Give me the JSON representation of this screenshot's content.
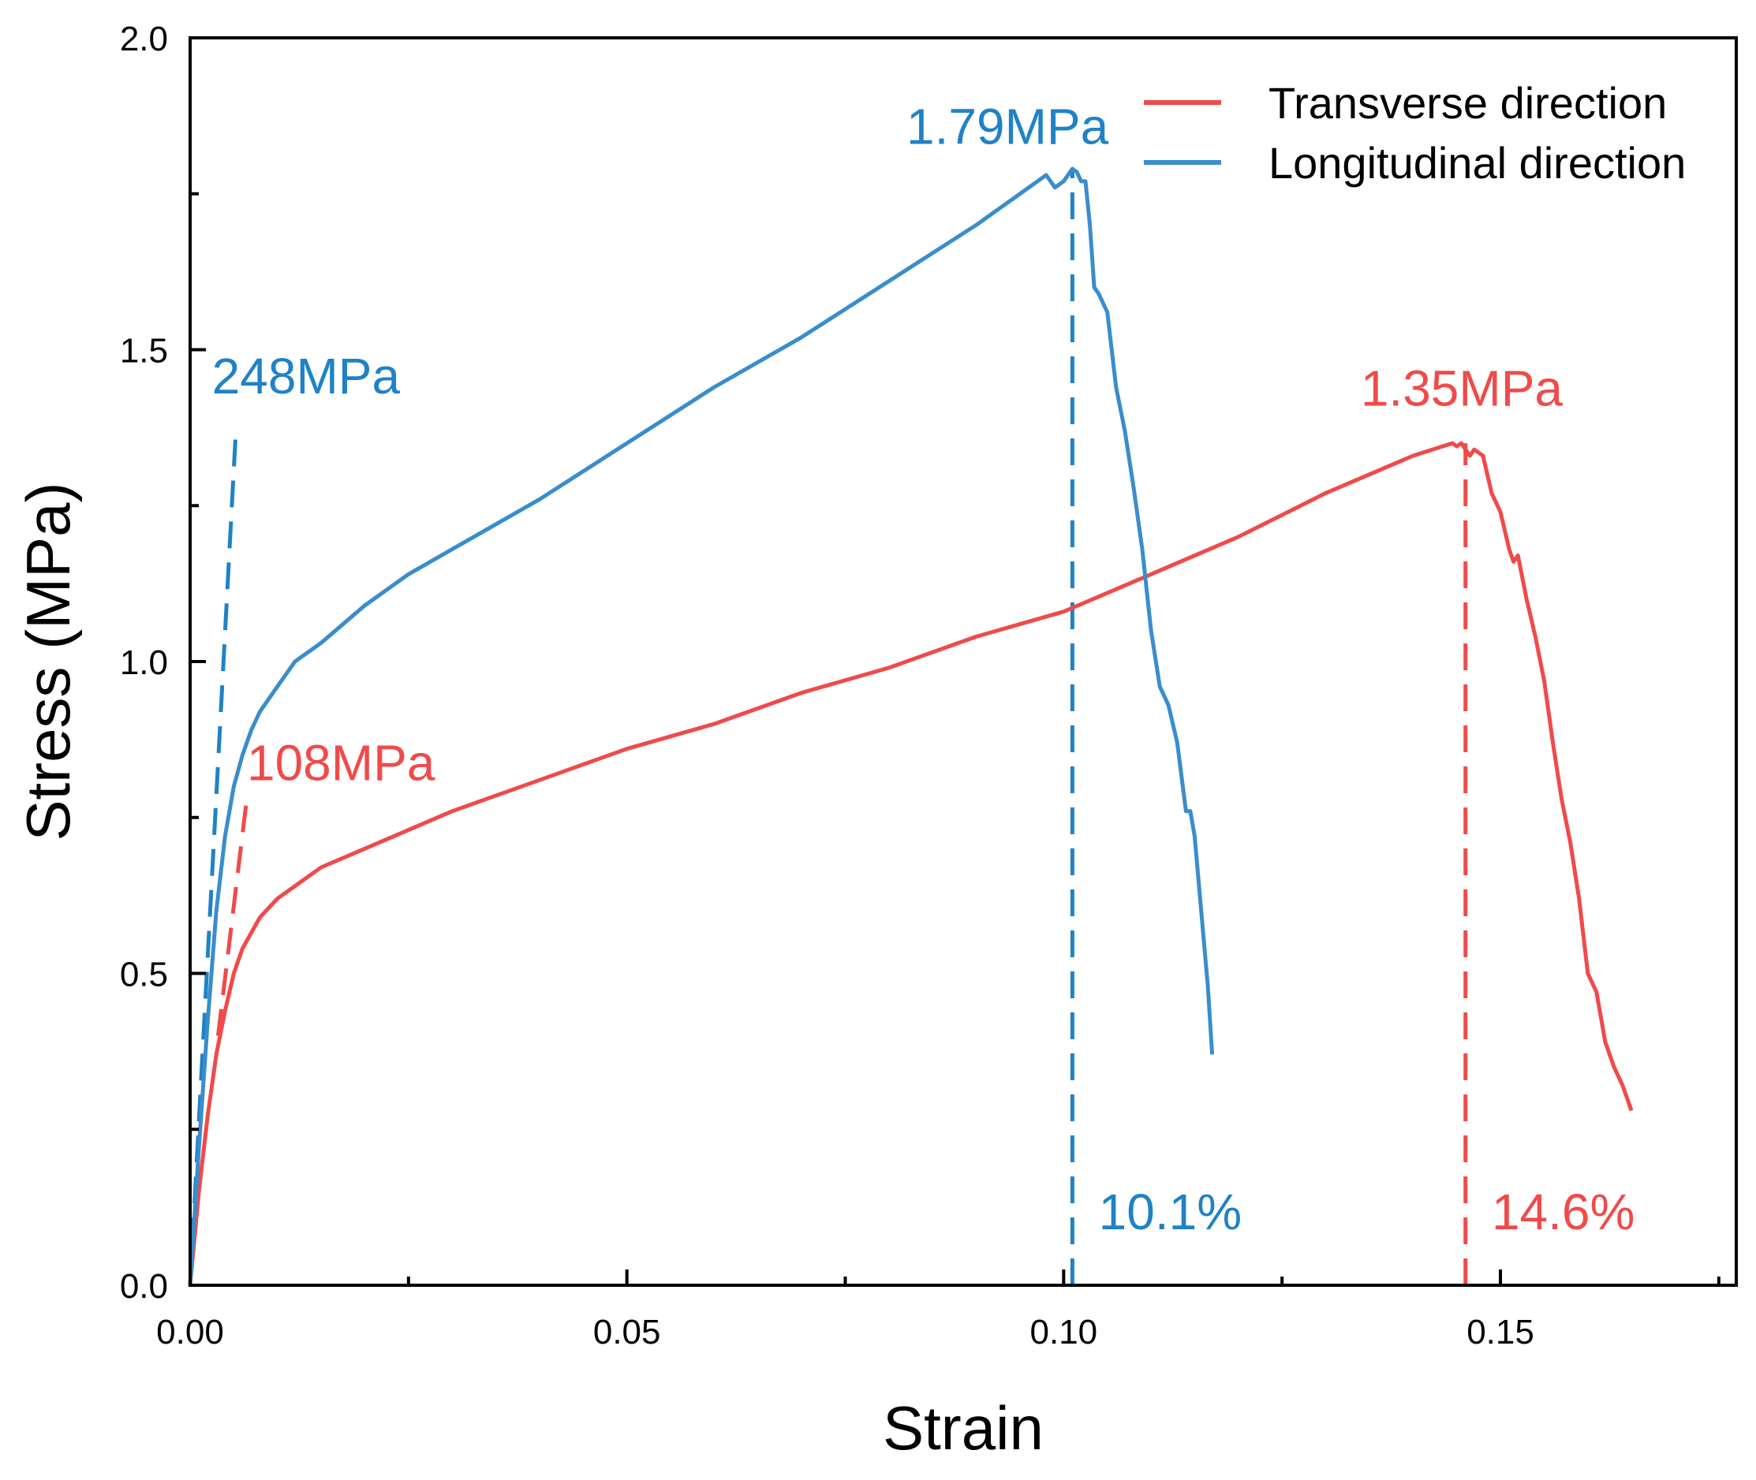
{
  "chart_data": {
    "type": "line",
    "title": "",
    "xlabel": "Strain",
    "ylabel": "Stress (MPa)",
    "xlim": [
      0,
      0.177
    ],
    "ylim": [
      0,
      2.0
    ],
    "xticks": [
      0,
      0.05,
      0.1,
      0.15
    ],
    "xtick_labels": [
      "0.00",
      "0.05",
      "0.10",
      "0.15"
    ],
    "xticks_minor": [
      0.025,
      0.075,
      0.125,
      0.175
    ],
    "yticks": [
      0,
      0.5,
      1.0,
      1.5,
      2.0
    ],
    "ytick_labels": [
      "0.0",
      "0.5",
      "1.0",
      "1.5",
      "2.0"
    ],
    "yticks_minor": [
      0.25,
      0.75,
      1.25,
      1.75
    ],
    "legend_position": "top-right",
    "series": [
      {
        "name": "Transverse direction",
        "color": "#f04a4a",
        "points": [
          [
            0,
            0
          ],
          [
            0.001,
            0.15
          ],
          [
            0.002,
            0.27
          ],
          [
            0.003,
            0.37
          ],
          [
            0.004,
            0.44
          ],
          [
            0.005,
            0.5
          ],
          [
            0.006,
            0.54
          ],
          [
            0.008,
            0.59
          ],
          [
            0.01,
            0.62
          ],
          [
            0.015,
            0.67
          ],
          [
            0.02,
            0.7
          ],
          [
            0.025,
            0.73
          ],
          [
            0.03,
            0.76
          ],
          [
            0.04,
            0.81
          ],
          [
            0.05,
            0.86
          ],
          [
            0.06,
            0.9
          ],
          [
            0.07,
            0.95
          ],
          [
            0.08,
            0.99
          ],
          [
            0.09,
            1.04
          ],
          [
            0.1,
            1.08
          ],
          [
            0.11,
            1.14
          ],
          [
            0.12,
            1.2
          ],
          [
            0.13,
            1.27
          ],
          [
            0.14,
            1.33
          ],
          [
            0.1445,
            1.35
          ],
          [
            0.145,
            1.345
          ],
          [
            0.1455,
            1.35
          ],
          [
            0.1465,
            1.33
          ],
          [
            0.147,
            1.34
          ],
          [
            0.148,
            1.33
          ],
          [
            0.149,
            1.27
          ],
          [
            0.15,
            1.24
          ],
          [
            0.151,
            1.18
          ],
          [
            0.1515,
            1.16
          ],
          [
            0.152,
            1.17
          ],
          [
            0.153,
            1.1
          ],
          [
            0.154,
            1.04
          ],
          [
            0.155,
            0.97
          ],
          [
            0.156,
            0.87
          ],
          [
            0.157,
            0.78
          ],
          [
            0.158,
            0.71
          ],
          [
            0.159,
            0.62
          ],
          [
            0.16,
            0.5
          ],
          [
            0.161,
            0.47
          ],
          [
            0.162,
            0.39
          ],
          [
            0.163,
            0.35
          ],
          [
            0.164,
            0.32
          ],
          [
            0.165,
            0.28
          ]
        ]
      },
      {
        "name": "Longitudinal direction",
        "color": "#3a8dcc",
        "points": [
          [
            0,
            0
          ],
          [
            0.001,
            0.22
          ],
          [
            0.002,
            0.42
          ],
          [
            0.003,
            0.6
          ],
          [
            0.004,
            0.72
          ],
          [
            0.005,
            0.8
          ],
          [
            0.006,
            0.85
          ],
          [
            0.007,
            0.89
          ],
          [
            0.008,
            0.92
          ],
          [
            0.01,
            0.96
          ],
          [
            0.012,
            1.0
          ],
          [
            0.015,
            1.03
          ],
          [
            0.02,
            1.09
          ],
          [
            0.025,
            1.14
          ],
          [
            0.03,
            1.18
          ],
          [
            0.04,
            1.26
          ],
          [
            0.05,
            1.35
          ],
          [
            0.06,
            1.44
          ],
          [
            0.07,
            1.52
          ],
          [
            0.08,
            1.61
          ],
          [
            0.09,
            1.7
          ],
          [
            0.095,
            1.75
          ],
          [
            0.098,
            1.78
          ],
          [
            0.099,
            1.76
          ],
          [
            0.1,
            1.77
          ],
          [
            0.101,
            1.79
          ],
          [
            0.1015,
            1.785
          ],
          [
            0.102,
            1.77
          ],
          [
            0.1025,
            1.77
          ],
          [
            0.103,
            1.7
          ],
          [
            0.1035,
            1.6
          ],
          [
            0.104,
            1.59
          ],
          [
            0.105,
            1.56
          ],
          [
            0.106,
            1.44
          ],
          [
            0.107,
            1.37
          ],
          [
            0.108,
            1.28
          ],
          [
            0.109,
            1.18
          ],
          [
            0.11,
            1.05
          ],
          [
            0.111,
            0.96
          ],
          [
            0.112,
            0.93
          ],
          [
            0.113,
            0.87
          ],
          [
            0.114,
            0.76
          ],
          [
            0.1145,
            0.76
          ],
          [
            0.115,
            0.72
          ],
          [
            0.116,
            0.56
          ],
          [
            0.1165,
            0.48
          ],
          [
            0.117,
            0.37
          ]
        ]
      }
    ],
    "reference_lines": [
      {
        "label": "248MPa",
        "color": "#1f82c7",
        "from": [
          0.0,
          0.0
        ],
        "to": [
          0.0052,
          1.36
        ]
      },
      {
        "label": "108MPa",
        "color": "#f04a4a",
        "from": [
          0.0032,
          0.4
        ],
        "to": [
          0.0064,
          0.77
        ]
      },
      {
        "label": "10.1%",
        "color": "#1f82c7",
        "from": [
          0.101,
          0.0
        ],
        "to": [
          0.101,
          1.79
        ]
      },
      {
        "label": "14.6%",
        "color": "#f04a4a",
        "from": [
          0.146,
          0.0
        ],
        "to": [
          0.146,
          1.35
        ]
      }
    ],
    "annotations": [
      {
        "text": "248MPa",
        "color": "#1f82c7",
        "x": 0.0025,
        "y": 1.43
      },
      {
        "text": "108MPa",
        "color": "#f04a4a",
        "x": 0.0065,
        "y": 0.81
      },
      {
        "text": "1.79MPa",
        "color": "#1f82c7",
        "x": 0.082,
        "y": 1.83
      },
      {
        "text": "1.35MPa",
        "color": "#f04a4a",
        "x": 0.134,
        "y": 1.41
      },
      {
        "text": "10.1%",
        "color": "#1f82c7",
        "x": 0.104,
        "y": 0.09
      },
      {
        "text": "14.6%",
        "color": "#f04a4a",
        "x": 0.149,
        "y": 0.09
      }
    ]
  }
}
